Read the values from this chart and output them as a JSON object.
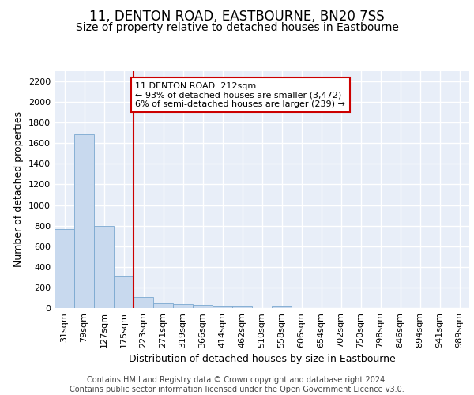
{
  "title": "11, DENTON ROAD, EASTBOURNE, BN20 7SS",
  "subtitle": "Size of property relative to detached houses in Eastbourne",
  "xlabel": "Distribution of detached houses by size in Eastbourne",
  "ylabel": "Number of detached properties",
  "categories": [
    "31sqm",
    "79sqm",
    "127sqm",
    "175sqm",
    "223sqm",
    "271sqm",
    "319sqm",
    "366sqm",
    "414sqm",
    "462sqm",
    "510sqm",
    "558sqm",
    "606sqm",
    "654sqm",
    "702sqm",
    "750sqm",
    "798sqm",
    "846sqm",
    "894sqm",
    "941sqm",
    "989sqm"
  ],
  "values": [
    770,
    1690,
    795,
    305,
    110,
    45,
    35,
    30,
    25,
    25,
    0,
    25,
    0,
    0,
    0,
    0,
    0,
    0,
    0,
    0,
    0
  ],
  "bar_color": "#c8d9ee",
  "bar_edge_color": "#7aa8d0",
  "vline_x": 3.5,
  "vline_color": "#cc0000",
  "annotation_text": "11 DENTON ROAD: 212sqm\n← 93% of detached houses are smaller (3,472)\n6% of semi-detached houses are larger (239) →",
  "annotation_box_color": "#ffffff",
  "annotation_box_edge": "#cc0000",
  "ylim": [
    0,
    2300
  ],
  "yticks": [
    0,
    200,
    400,
    600,
    800,
    1000,
    1200,
    1400,
    1600,
    1800,
    2000,
    2200
  ],
  "bg_color": "#e8eef8",
  "grid_color": "#ffffff",
  "footer": "Contains HM Land Registry data © Crown copyright and database right 2024.\nContains public sector information licensed under the Open Government Licence v3.0.",
  "title_fontsize": 12,
  "subtitle_fontsize": 10,
  "axis_label_fontsize": 9,
  "tick_fontsize": 8,
  "footer_fontsize": 7,
  "ann_fontsize": 8
}
